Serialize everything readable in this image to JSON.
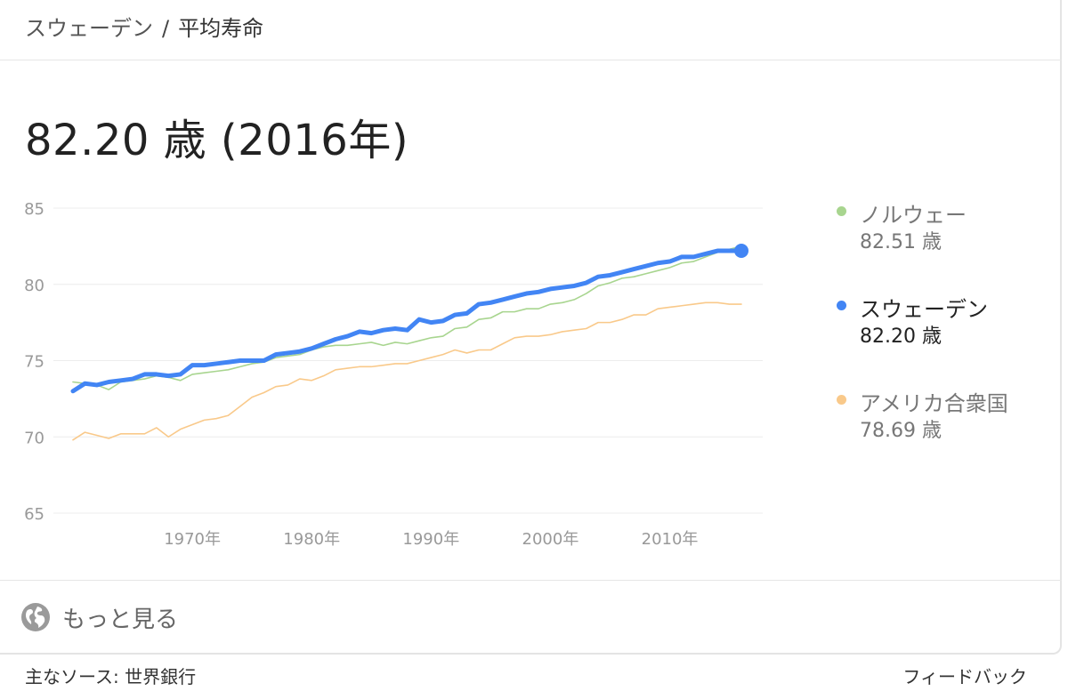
{
  "breadcrumb": {
    "country": "スウェーデン",
    "separator": "/",
    "metric": "平均寿命"
  },
  "headline": "82.20 歳 (2016年)",
  "colors": {
    "norway": "#a8d58f",
    "sweden": "#4285f4",
    "usa": "#f9c98a",
    "grid": "#ececec",
    "axis_text": "#999999"
  },
  "legend": [
    {
      "name": "ノルウェー",
      "value": "82.51 歳",
      "color_key": "norway",
      "active": false
    },
    {
      "name": "スウェーデン",
      "value": "82.20 歳",
      "color_key": "sweden",
      "active": true
    },
    {
      "name": "アメリカ合衆国",
      "value": "78.69 歳",
      "color_key": "usa",
      "active": false
    }
  ],
  "chart_data": {
    "type": "line",
    "title": "",
    "xlabel": "",
    "ylabel": "",
    "x_start": 1960,
    "xlim": [
      1960,
      2016
    ],
    "ylim": [
      65,
      85
    ],
    "y_ticks": [
      "65",
      "70",
      "75",
      "80",
      "85"
    ],
    "x_ticks": [
      {
        "x": 1970,
        "label": "1970年"
      },
      {
        "x": 1980,
        "label": "1980年"
      },
      {
        "x": 1990,
        "label": "1990年"
      },
      {
        "x": 2000,
        "label": "2000年"
      },
      {
        "x": 2010,
        "label": "2010年"
      }
    ],
    "grid": true,
    "legend_position": "right",
    "highlight_series": "スウェーデン",
    "series": [
      {
        "name": "ノルウェー",
        "color_key": "norway",
        "values": [
          73.6,
          73.5,
          73.4,
          73.1,
          73.6,
          73.7,
          73.8,
          74.0,
          73.9,
          73.7,
          74.1,
          74.2,
          74.3,
          74.4,
          74.6,
          74.8,
          74.9,
          75.2,
          75.3,
          75.4,
          75.7,
          75.9,
          76.0,
          76.0,
          76.1,
          76.2,
          76.0,
          76.2,
          76.1,
          76.3,
          76.5,
          76.6,
          77.1,
          77.2,
          77.7,
          77.8,
          78.2,
          78.2,
          78.4,
          78.4,
          78.7,
          78.8,
          79.0,
          79.4,
          79.9,
          80.1,
          80.4,
          80.5,
          80.7,
          80.9,
          81.1,
          81.4,
          81.5,
          81.8,
          82.1,
          82.3,
          82.5
        ]
      },
      {
        "name": "スウェーデン",
        "color_key": "sweden",
        "values": [
          73.0,
          73.5,
          73.4,
          73.6,
          73.7,
          73.8,
          74.1,
          74.1,
          74.0,
          74.1,
          74.7,
          74.7,
          74.8,
          74.9,
          75.0,
          75.0,
          75.0,
          75.4,
          75.5,
          75.6,
          75.8,
          76.1,
          76.4,
          76.6,
          76.9,
          76.8,
          77.0,
          77.1,
          77.0,
          77.7,
          77.5,
          77.6,
          78.0,
          78.1,
          78.7,
          78.8,
          79.0,
          79.2,
          79.4,
          79.5,
          79.7,
          79.8,
          79.9,
          80.1,
          80.5,
          80.6,
          80.8,
          81.0,
          81.2,
          81.4,
          81.5,
          81.8,
          81.8,
          82.0,
          82.2,
          82.2,
          82.2
        ]
      },
      {
        "name": "アメリカ合衆国",
        "color_key": "usa",
        "values": [
          69.8,
          70.3,
          70.1,
          69.9,
          70.2,
          70.2,
          70.2,
          70.6,
          70.0,
          70.5,
          70.8,
          71.1,
          71.2,
          71.4,
          72.0,
          72.6,
          72.9,
          73.3,
          73.4,
          73.8,
          73.7,
          74.0,
          74.4,
          74.5,
          74.6,
          74.6,
          74.7,
          74.8,
          74.8,
          75.0,
          75.2,
          75.4,
          75.7,
          75.5,
          75.7,
          75.7,
          76.1,
          76.5,
          76.6,
          76.6,
          76.7,
          76.9,
          77.0,
          77.1,
          77.5,
          77.5,
          77.7,
          78.0,
          78.0,
          78.4,
          78.5,
          78.6,
          78.7,
          78.8,
          78.8,
          78.7,
          78.7
        ]
      }
    ]
  },
  "more_link": {
    "label": "もっと見る",
    "icon": "globe-icon"
  },
  "footer": {
    "source": "主なソース: 世界銀行",
    "feedback": "フィードバック"
  }
}
